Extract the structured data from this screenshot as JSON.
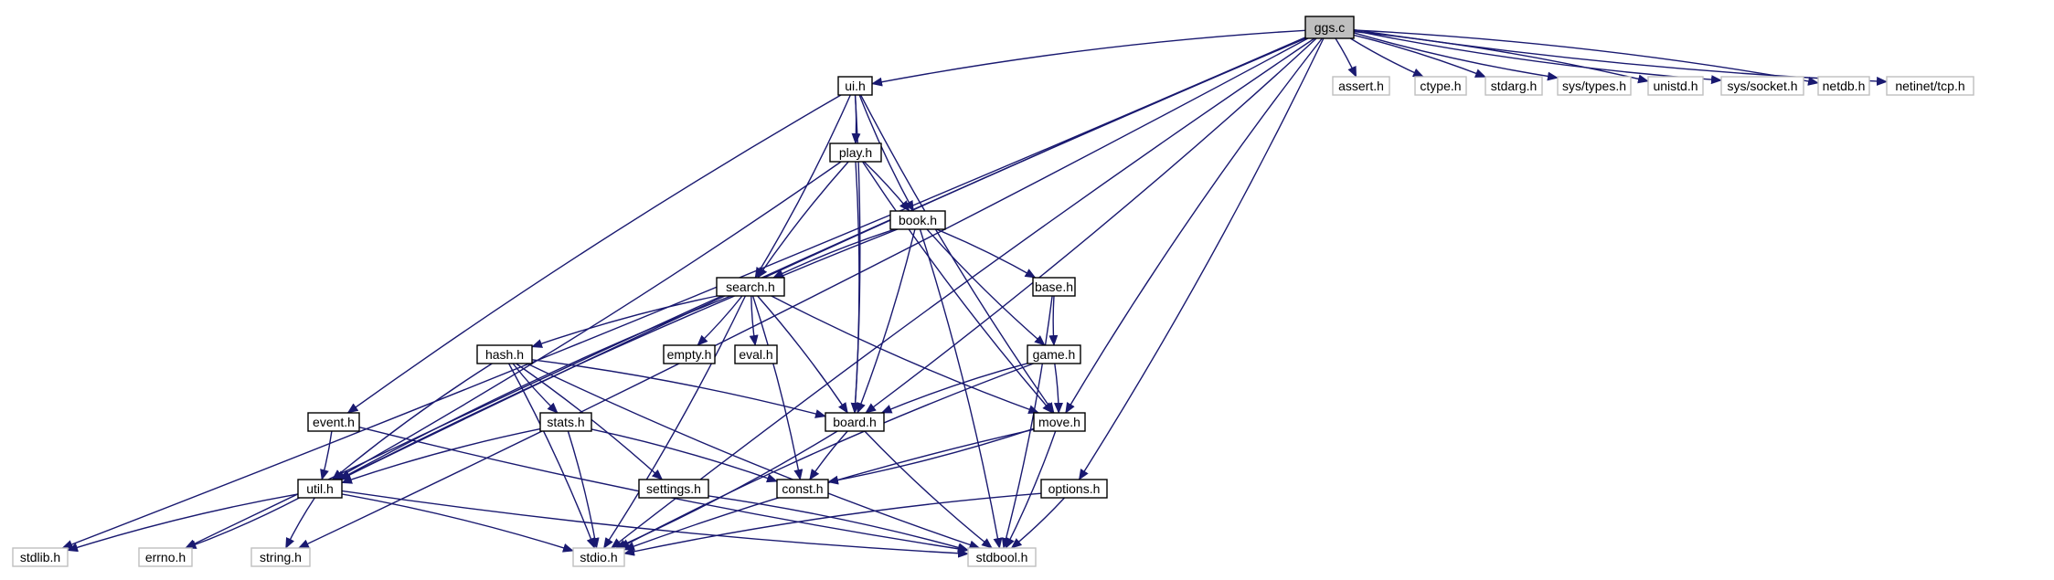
{
  "graph": {
    "colors": {
      "edge": "#191970",
      "root_fill": "#bfbfbf",
      "box_stroke": "#000000",
      "sys_stroke": "#bfbfbf",
      "text": "#000000"
    },
    "nodes": [
      {
        "id": "ggs_c",
        "label": "ggs.c",
        "kind": "root"
      },
      {
        "id": "ui_h",
        "label": "ui.h",
        "kind": "local"
      },
      {
        "id": "play_h",
        "label": "play.h",
        "kind": "local"
      },
      {
        "id": "book_h",
        "label": "book.h",
        "kind": "local"
      },
      {
        "id": "search_h",
        "label": "search.h",
        "kind": "local"
      },
      {
        "id": "base_h",
        "label": "base.h",
        "kind": "local"
      },
      {
        "id": "hash_h",
        "label": "hash.h",
        "kind": "local"
      },
      {
        "id": "empty_h",
        "label": "empty.h",
        "kind": "local"
      },
      {
        "id": "eval_h",
        "label": "eval.h",
        "kind": "local"
      },
      {
        "id": "game_h",
        "label": "game.h",
        "kind": "local"
      },
      {
        "id": "event_h",
        "label": "event.h",
        "kind": "local"
      },
      {
        "id": "stats_h",
        "label": "stats.h",
        "kind": "local"
      },
      {
        "id": "board_h",
        "label": "board.h",
        "kind": "local"
      },
      {
        "id": "move_h",
        "label": "move.h",
        "kind": "local"
      },
      {
        "id": "util_h",
        "label": "util.h",
        "kind": "local"
      },
      {
        "id": "settings_h",
        "label": "settings.h",
        "kind": "local"
      },
      {
        "id": "const_h",
        "label": "const.h",
        "kind": "local"
      },
      {
        "id": "options_h",
        "label": "options.h",
        "kind": "local"
      },
      {
        "id": "assert_h",
        "label": "assert.h",
        "kind": "system"
      },
      {
        "id": "ctype_h",
        "label": "ctype.h",
        "kind": "system"
      },
      {
        "id": "stdarg_h",
        "label": "stdarg.h",
        "kind": "system"
      },
      {
        "id": "systypes_h",
        "label": "sys/types.h",
        "kind": "system"
      },
      {
        "id": "unistd_h",
        "label": "unistd.h",
        "kind": "system"
      },
      {
        "id": "syssocket_h",
        "label": "sys/socket.h",
        "kind": "system"
      },
      {
        "id": "netdb_h",
        "label": "netdb.h",
        "kind": "system"
      },
      {
        "id": "netinettcp_h",
        "label": "netinet/tcp.h",
        "kind": "system"
      },
      {
        "id": "stdlib_h",
        "label": "stdlib.h",
        "kind": "system"
      },
      {
        "id": "errno_h",
        "label": "errno.h",
        "kind": "system"
      },
      {
        "id": "string_h",
        "label": "string.h",
        "kind": "system"
      },
      {
        "id": "stdio_h",
        "label": "stdio.h",
        "kind": "system"
      },
      {
        "id": "stdbool_h",
        "label": "stdbool.h",
        "kind": "system"
      }
    ],
    "edges": [
      [
        "ggs_c",
        "ui_h"
      ],
      [
        "ggs_c",
        "assert_h"
      ],
      [
        "ggs_c",
        "ctype_h"
      ],
      [
        "ggs_c",
        "stdarg_h"
      ],
      [
        "ggs_c",
        "systypes_h"
      ],
      [
        "ggs_c",
        "unistd_h"
      ],
      [
        "ggs_c",
        "syssocket_h"
      ],
      [
        "ggs_c",
        "netdb_h"
      ],
      [
        "ggs_c",
        "netinettcp_h"
      ],
      [
        "ggs_c",
        "board_h"
      ],
      [
        "ggs_c",
        "move_h"
      ],
      [
        "ggs_c",
        "options_h"
      ],
      [
        "ggs_c",
        "util_h"
      ],
      [
        "ggs_c",
        "stdlib_h"
      ],
      [
        "ggs_c",
        "errno_h"
      ],
      [
        "ggs_c",
        "string_h"
      ],
      [
        "ggs_c",
        "stdio_h"
      ],
      [
        "ui_h",
        "play_h"
      ],
      [
        "ui_h",
        "book_h"
      ],
      [
        "ui_h",
        "search_h"
      ],
      [
        "ui_h",
        "event_h"
      ],
      [
        "ui_h",
        "board_h"
      ],
      [
        "ui_h",
        "move_h"
      ],
      [
        "play_h",
        "book_h"
      ],
      [
        "play_h",
        "search_h"
      ],
      [
        "play_h",
        "board_h"
      ],
      [
        "play_h",
        "move_h"
      ],
      [
        "play_h",
        "util_h"
      ],
      [
        "book_h",
        "search_h"
      ],
      [
        "book_h",
        "base_h"
      ],
      [
        "book_h",
        "game_h"
      ],
      [
        "book_h",
        "board_h"
      ],
      [
        "book_h",
        "util_h"
      ],
      [
        "book_h",
        "stdbool_h"
      ],
      [
        "search_h",
        "hash_h"
      ],
      [
        "search_h",
        "empty_h"
      ],
      [
        "search_h",
        "eval_h"
      ],
      [
        "search_h",
        "board_h"
      ],
      [
        "search_h",
        "move_h"
      ],
      [
        "search_h",
        "const_h"
      ],
      [
        "search_h",
        "util_h"
      ],
      [
        "search_h",
        "stdio_h"
      ],
      [
        "base_h",
        "game_h"
      ],
      [
        "base_h",
        "stdbool_h"
      ],
      [
        "game_h",
        "board_h"
      ],
      [
        "game_h",
        "move_h"
      ],
      [
        "game_h",
        "stdio_h"
      ],
      [
        "hash_h",
        "board_h"
      ],
      [
        "hash_h",
        "stats_h"
      ],
      [
        "hash_h",
        "settings_h"
      ],
      [
        "hash_h",
        "util_h"
      ],
      [
        "hash_h",
        "stdio_h"
      ],
      [
        "hash_h",
        "stdbool_h"
      ],
      [
        "event_h",
        "util_h"
      ],
      [
        "event_h",
        "stdbool_h"
      ],
      [
        "stats_h",
        "const_h"
      ],
      [
        "stats_h",
        "util_h"
      ],
      [
        "stats_h",
        "stdio_h"
      ],
      [
        "board_h",
        "const_h"
      ],
      [
        "board_h",
        "stdio_h"
      ],
      [
        "board_h",
        "stdbool_h"
      ],
      [
        "move_h",
        "const_h"
      ],
      [
        "move_h",
        "stdio_h"
      ],
      [
        "move_h",
        "stdbool_h"
      ],
      [
        "util_h",
        "stdlib_h"
      ],
      [
        "util_h",
        "errno_h"
      ],
      [
        "util_h",
        "string_h"
      ],
      [
        "util_h",
        "stdio_h"
      ],
      [
        "util_h",
        "stdbool_h"
      ],
      [
        "settings_h",
        "stdbool_h"
      ],
      [
        "options_h",
        "stdio_h"
      ],
      [
        "options_h",
        "stdbool_h"
      ]
    ]
  }
}
